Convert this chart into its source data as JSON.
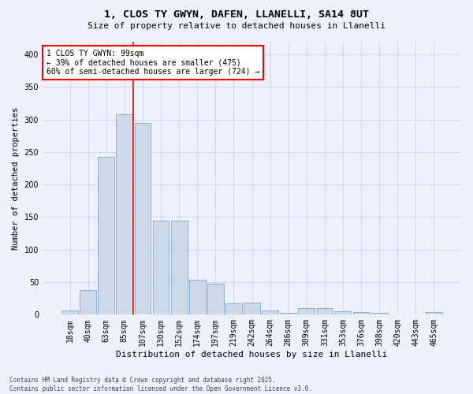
{
  "title1": "1, CLOS TY GWYN, DAFEN, LLANELLI, SA14 8UT",
  "title2": "Size of property relative to detached houses in Llanelli",
  "xlabel": "Distribution of detached houses by size in Llanelli",
  "ylabel": "Number of detached properties",
  "bar_color": "#ccd9e8",
  "bar_edge_color": "#7aaace",
  "categories": [
    "18sqm",
    "40sqm",
    "63sqm",
    "85sqm",
    "107sqm",
    "130sqm",
    "152sqm",
    "174sqm",
    "197sqm",
    "219sqm",
    "242sqm",
    "264sqm",
    "286sqm",
    "309sqm",
    "331sqm",
    "353sqm",
    "376sqm",
    "398sqm",
    "420sqm",
    "443sqm",
    "465sqm"
  ],
  "values": [
    7,
    38,
    243,
    308,
    295,
    144,
    144,
    54,
    48,
    17,
    19,
    7,
    3,
    10,
    10,
    5,
    4,
    3,
    1,
    0,
    4
  ],
  "annotation_text": "1 CLOS TY GWYN: 99sqm\n← 39% of detached houses are smaller (475)\n60% of semi-detached houses are larger (724) →",
  "annotation_box_color": "white",
  "annotation_box_edge_color": "red",
  "vline_color": "red",
  "footer_text": "Contains HM Land Registry data © Crown copyright and database right 2025.\nContains public sector information licensed under the Open Government Licence v3.0.",
  "ylim": [
    0,
    420
  ],
  "background_color": "#eef1fb",
  "grid_color": "#d0d8ef"
}
